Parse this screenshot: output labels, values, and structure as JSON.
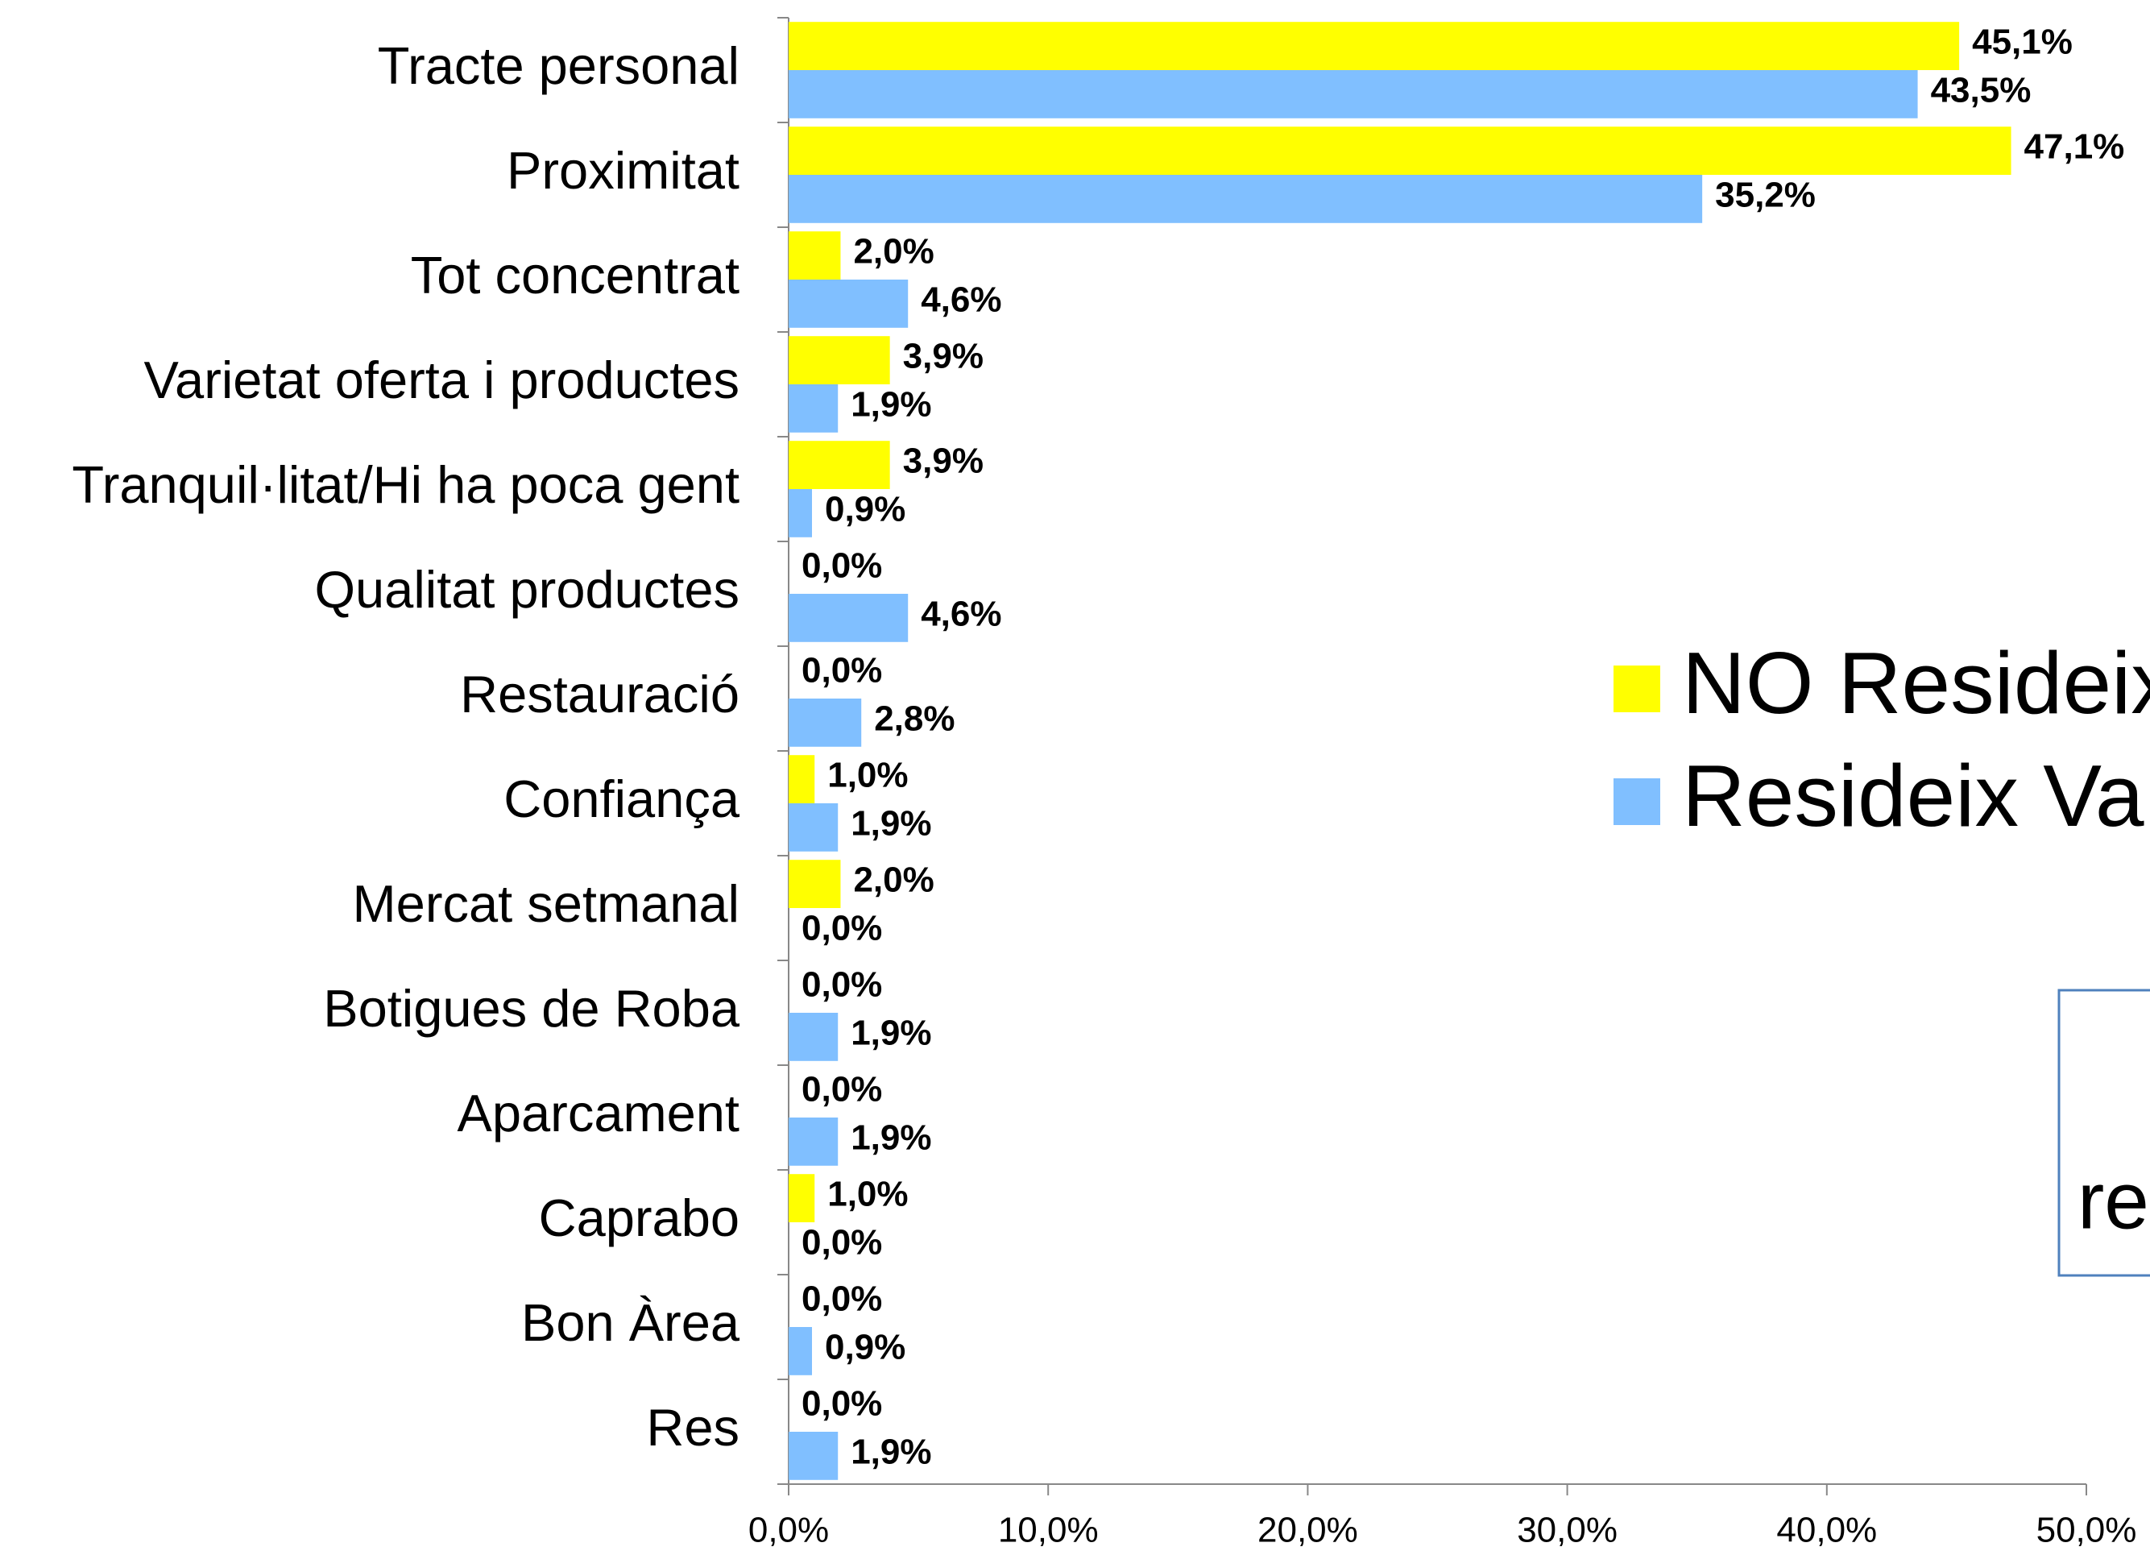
{
  "chart_data": {
    "type": "bar",
    "orientation": "horizontal",
    "categories": [
      "Tracte personal",
      "Proximitat",
      "Tot concentrat",
      "Varietat oferta i productes",
      "Tranquil·litat/Hi ha poca gent",
      "Qualitat productes",
      "Restauració",
      "Confiança",
      "Mercat setmanal",
      "Botigues de Roba",
      "Aparcament",
      "Caprabo",
      "Bon Àrea",
      "Res"
    ],
    "series": [
      {
        "name": "NO Resideix",
        "color": "#ffff00",
        "values": [
          45.1,
          47.1,
          2.0,
          3.9,
          3.9,
          0.0,
          0.0,
          1.0,
          2.0,
          0.0,
          0.0,
          1.0,
          0.0,
          0.0
        ],
        "value_labels": [
          "45,1%",
          "47,1%",
          "2,0%",
          "3,9%",
          "3,9%",
          "0,0%",
          "0,0%",
          "1,0%",
          "2,0%",
          "0,0%",
          "0,0%",
          "1,0%",
          "0,0%",
          "0,0%"
        ]
      },
      {
        "name": "Resideix Va",
        "color": "#80bfff",
        "values": [
          43.5,
          35.2,
          4.6,
          1.9,
          0.9,
          4.6,
          2.8,
          1.9,
          0.0,
          1.9,
          1.9,
          0.0,
          0.9,
          1.9
        ],
        "value_labels": [
          "43,5%",
          "35,2%",
          "4,6%",
          "1,9%",
          "0,9%",
          "4,6%",
          "2,8%",
          "1,9%",
          "0,0%",
          "1,9%",
          "1,9%",
          "0,0%",
          "0,9%",
          "1,9%"
        ]
      }
    ],
    "xlim": [
      0,
      50
    ],
    "xticks": [
      {
        "value": 0,
        "label": "0,0%"
      },
      {
        "value": 10,
        "label": "10,0%"
      },
      {
        "value": 20,
        "label": "20,0%"
      },
      {
        "value": 30,
        "label": "30,0%"
      },
      {
        "value": 40,
        "label": "40,0%"
      },
      {
        "value": 50,
        "label": "50,0%"
      }
    ],
    "annotation": "re"
  }
}
